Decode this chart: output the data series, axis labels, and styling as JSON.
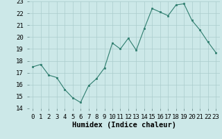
{
  "x": [
    0,
    1,
    2,
    3,
    4,
    5,
    6,
    7,
    8,
    9,
    10,
    11,
    12,
    13,
    14,
    15,
    16,
    17,
    18,
    19,
    20,
    21,
    22,
    23
  ],
  "y": [
    17.5,
    17.7,
    16.8,
    16.6,
    15.6,
    14.9,
    14.5,
    15.9,
    16.5,
    17.4,
    19.5,
    19.0,
    19.9,
    18.9,
    20.7,
    22.4,
    22.1,
    21.8,
    22.7,
    22.8,
    21.4,
    20.6,
    19.6,
    18.7
  ],
  "line_color": "#2e7d6e",
  "marker_color": "#2e7d6e",
  "bg_color": "#cce8e8",
  "grid_color": "#aacccc",
  "xlabel": "Humidex (Indice chaleur)",
  "ylim": [
    14,
    23
  ],
  "xlim_min": -0.5,
  "xlim_max": 23.5,
  "yticks": [
    14,
    15,
    16,
    17,
    18,
    19,
    20,
    21,
    22,
    23
  ],
  "xticks": [
    0,
    1,
    2,
    3,
    4,
    5,
    6,
    7,
    8,
    9,
    10,
    11,
    12,
    13,
    14,
    15,
    16,
    17,
    18,
    19,
    20,
    21,
    22,
    23
  ],
  "xlabel_fontsize": 7.5,
  "tick_fontsize": 6.5
}
